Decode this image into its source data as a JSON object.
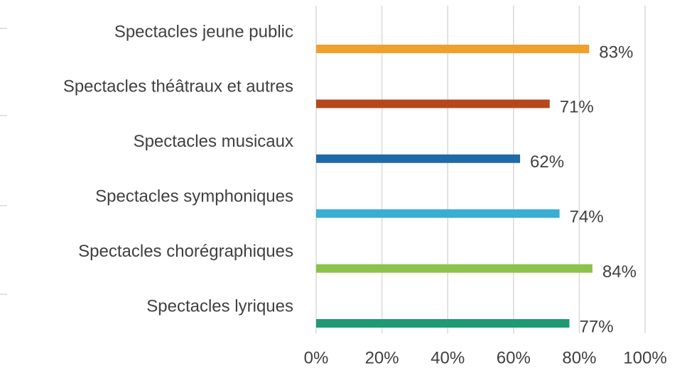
{
  "chart_data": {
    "type": "barh",
    "categories": [
      "Spectacles jeune public",
      "Spectacles théâtraux et autres",
      "Spectacles musicaux",
      "Spectacles symphoniques",
      "Spectacles chorégraphiques",
      "Spectacles lyriques"
    ],
    "values": [
      83,
      71,
      62,
      74,
      84,
      77
    ],
    "value_labels": [
      "83%",
      "71%",
      "62%",
      "74%",
      "84%",
      "77%"
    ],
    "colors": [
      "#f0a12c",
      "#b7461d",
      "#1f6aa6",
      "#38aed3",
      "#8bc34a",
      "#1f9a72"
    ],
    "xlim": [
      0,
      100
    ],
    "xticks": [
      {
        "value": 0,
        "label": "0%"
      },
      {
        "value": 20,
        "label": "20%"
      },
      {
        "value": 40,
        "label": "40%"
      },
      {
        "value": 60,
        "label": "60%"
      },
      {
        "value": 80,
        "label": "80%"
      },
      {
        "value": 100,
        "label": "100%"
      }
    ],
    "grid": true
  }
}
